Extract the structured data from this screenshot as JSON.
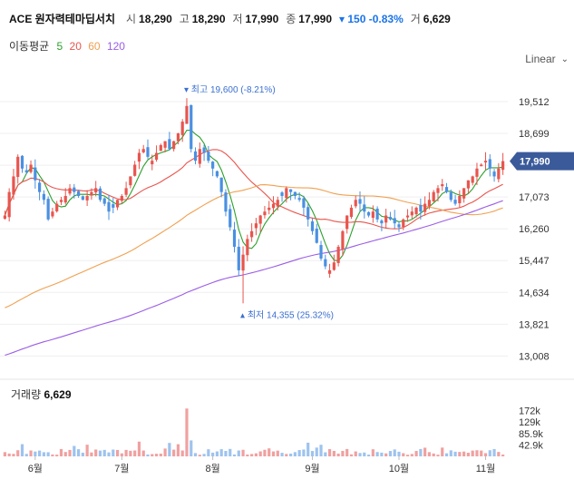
{
  "header": {
    "name": "ACE 원자력테마딥서치",
    "open_label": "시",
    "open": "18,290",
    "high_label": "고",
    "high": "18,290",
    "low_label": "저",
    "low": "17,990",
    "close_label": "종",
    "close": "17,990",
    "change": "▾ 150 -0.83%",
    "vol_label": "거",
    "vol": "6,629"
  },
  "ma": {
    "title": "이동평균",
    "periods": [
      {
        "label": "5",
        "color": "#2ca02c"
      },
      {
        "label": "20",
        "color": "#e8554e"
      },
      {
        "label": "60",
        "color": "#f0a050"
      },
      {
        "label": "120",
        "color": "#9b5de5"
      }
    ]
  },
  "scale_label": "Linear",
  "colors": {
    "up": "#e8554e",
    "down": "#4a90e2",
    "price_tag": "#3a5a9a"
  },
  "chart_data": {
    "type": "candlestick",
    "y_ticks": [
      19512,
      18699,
      17886,
      17073,
      16260,
      15447,
      14634,
      13821,
      13008
    ],
    "y_tick_labels": [
      "19,512",
      "18,699",
      "",
      "17,073",
      "16,260",
      "15,447",
      "14,634",
      "13,821",
      "13,008"
    ],
    "ylim": [
      12600,
      20300
    ],
    "x_labels": [
      "6월",
      "7월",
      "8월",
      "9월",
      "10월",
      "11월"
    ],
    "x_label_index": [
      7,
      27,
      48,
      71,
      91,
      111
    ],
    "current_price": 17990,
    "current_price_label": "17,990",
    "high_marker": {
      "index": 42,
      "value": 19600,
      "label": "▾ 최고 19,600 (-8.21%)"
    },
    "low_marker": {
      "index": 55,
      "value": 14355,
      "label": "▴ 최저 14,355 (25.32%)"
    },
    "closes": [
      16600,
      17200,
      17600,
      18100,
      17800,
      17700,
      17900,
      17500,
      17200,
      17000,
      16500,
      16700,
      16900,
      17000,
      17100,
      17300,
      17200,
      17100,
      17000,
      17100,
      17200,
      17300,
      17000,
      16900,
      16700,
      16800,
      17000,
      17100,
      17300,
      17600,
      17900,
      18200,
      18300,
      18100,
      18000,
      18200,
      18400,
      18500,
      18300,
      18500,
      18700,
      19000,
      19400,
      18300,
      18000,
      18300,
      18200,
      18000,
      17800,
      17600,
      17200,
      16700,
      16300,
      15800,
      15200,
      15600,
      16000,
      16200,
      16400,
      16600,
      16700,
      16800,
      16900,
      17000,
      17100,
      17300,
      17200,
      17100,
      17000,
      16800,
      16500,
      16200,
      15900,
      15500,
      15300,
      15200,
      15400,
      15800,
      16200,
      16600,
      16800,
      17000,
      16900,
      16700,
      16600,
      16700,
      16500,
      16400,
      16600,
      16500,
      16400,
      16300,
      16500,
      16600,
      16700,
      16800,
      16700,
      16900,
      17000,
      17200,
      17300,
      17400,
      17200,
      17000,
      16900,
      17100,
      17300,
      17500,
      17600,
      17800,
      17900,
      18000,
      17800,
      17600,
      17800,
      17990
    ],
    "volume_ticks": [
      "172k",
      "129k",
      "85.9k",
      "42.9k"
    ],
    "volume_tick_values": [
      172000,
      129000,
      85900,
      42900
    ],
    "volume_max": 215000,
    "volume_title": "거래량",
    "volume_value": "6,629"
  }
}
